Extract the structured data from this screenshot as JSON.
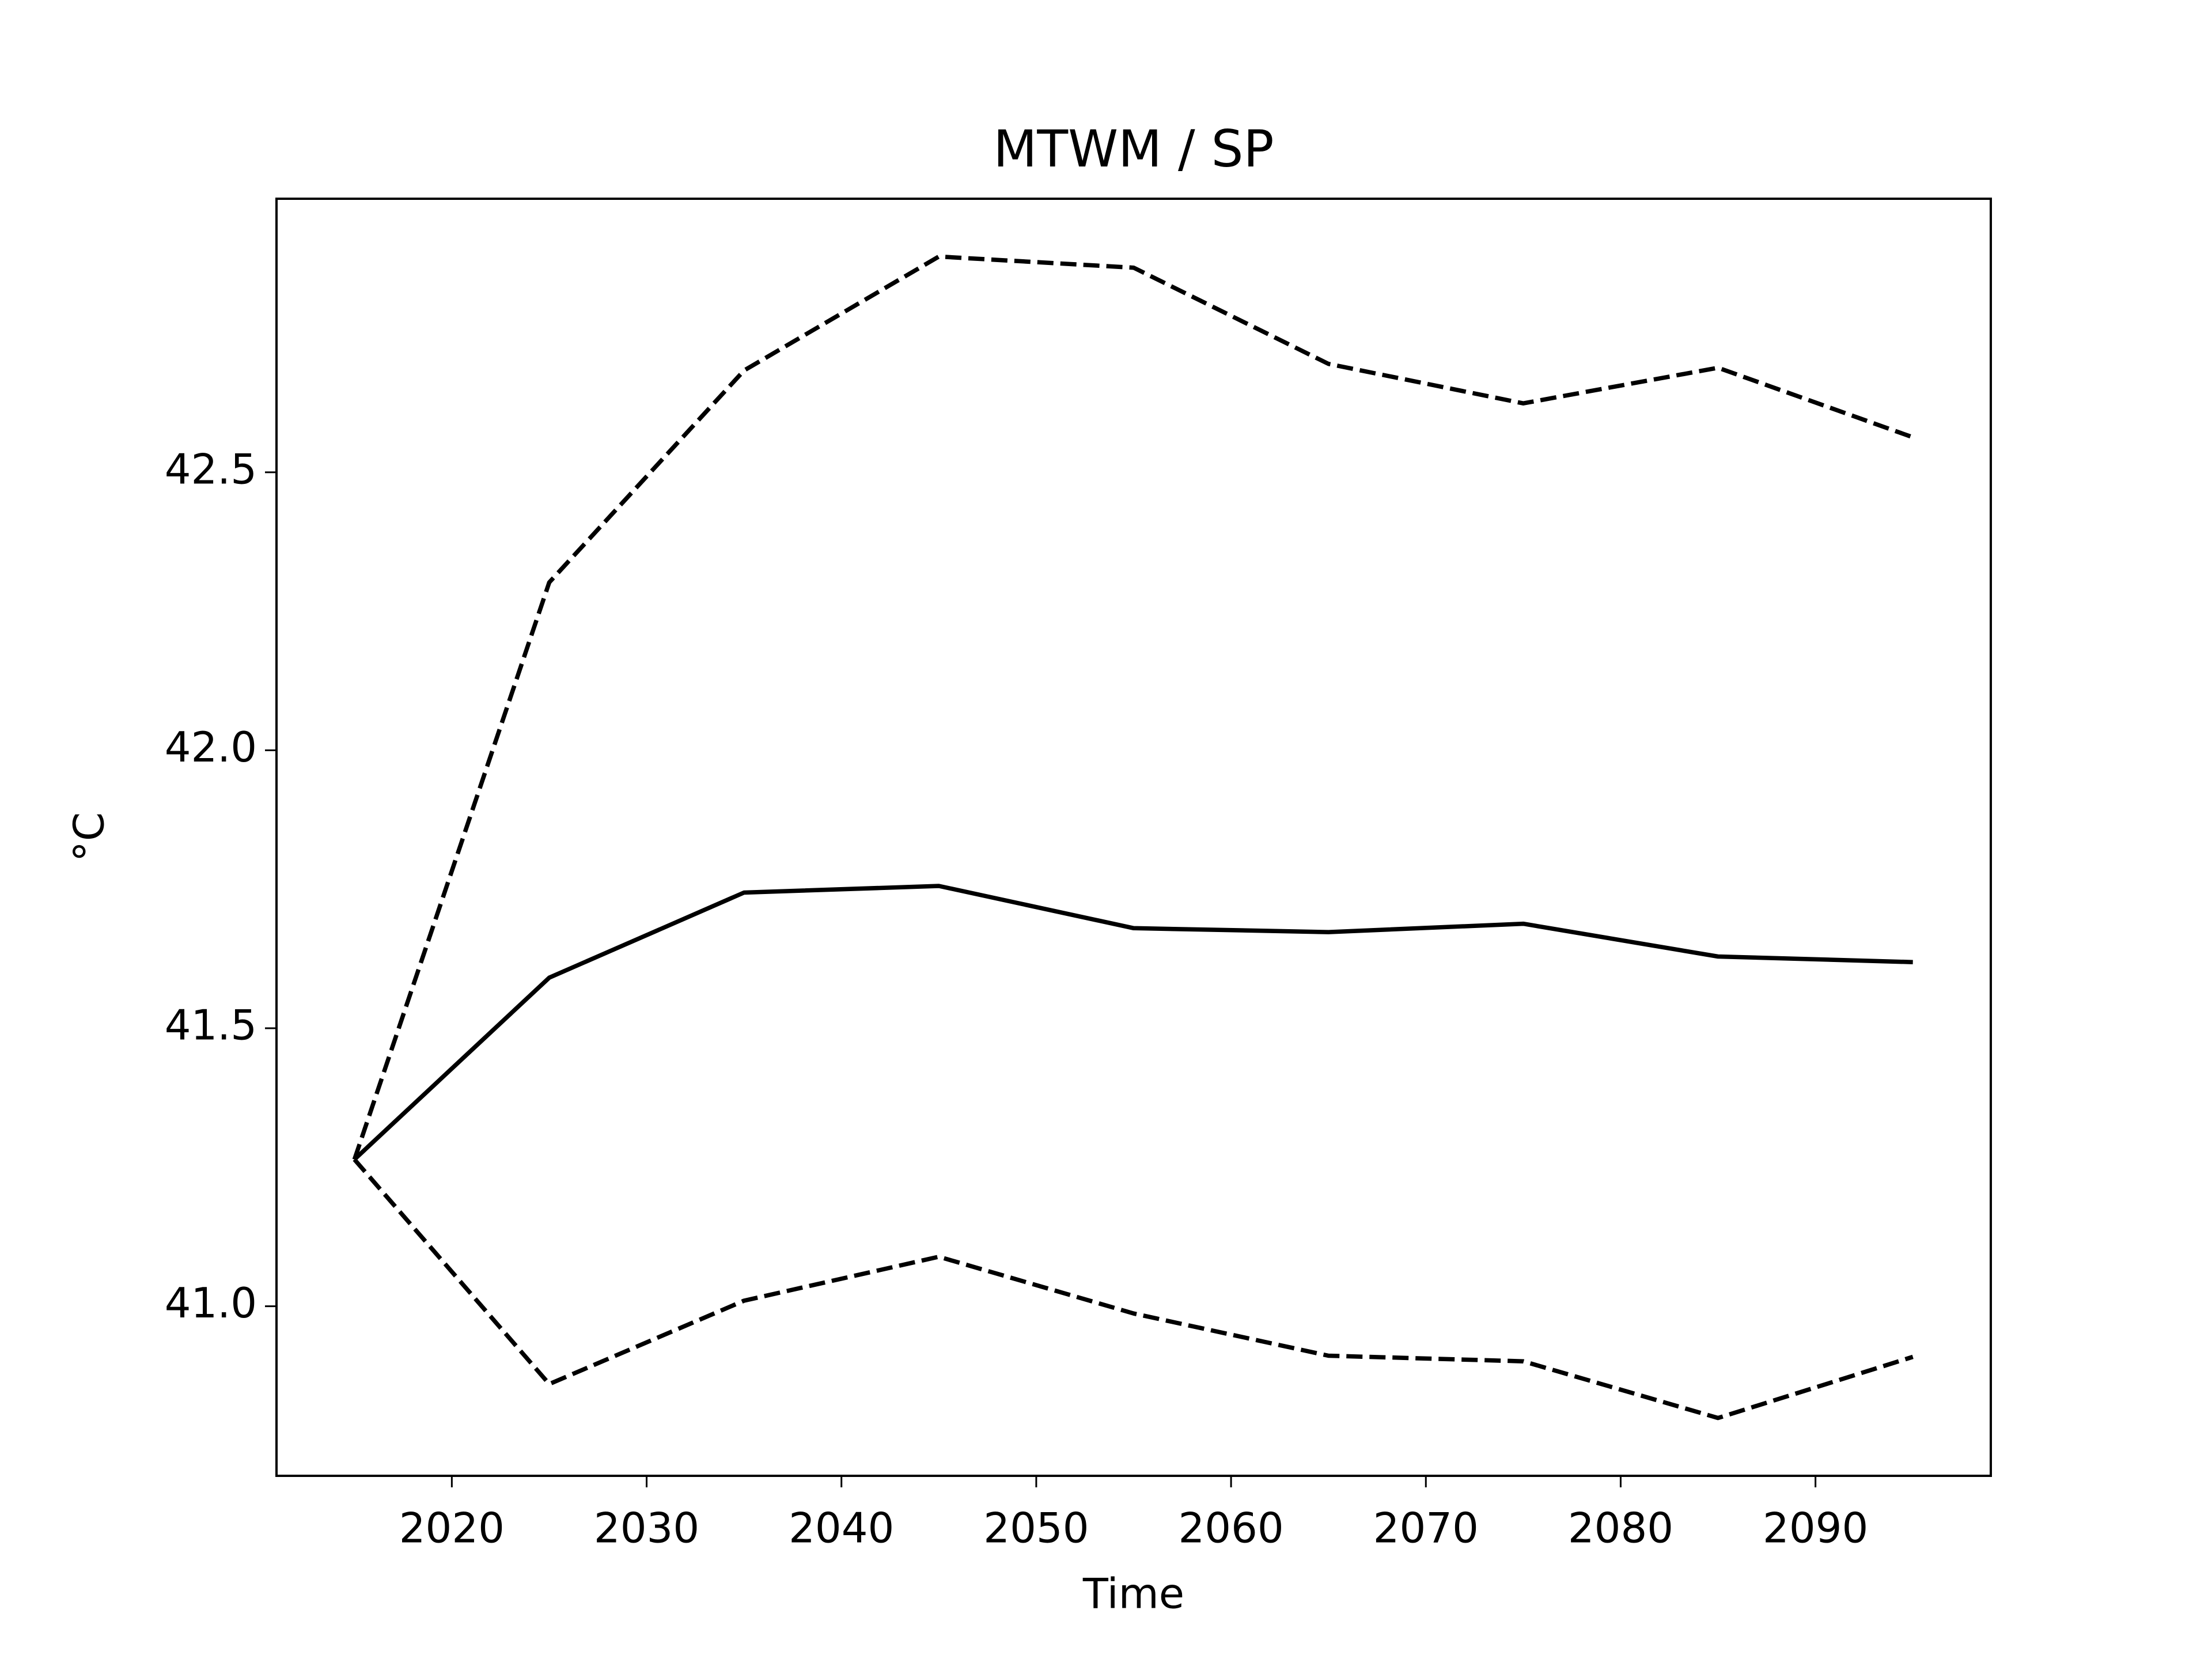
{
  "chart_data": {
    "type": "line",
    "title": "MTWM / SP",
    "xlabel": "Time",
    "ylabel": "°C",
    "x": [
      2015,
      2025,
      2035,
      2045,
      2055,
      2065,
      2075,
      2085,
      2095
    ],
    "series": [
      {
        "color": "#000000",
        "linestyle": "solid",
        "values": [
          41.264,
          41.591,
          41.744,
          41.756,
          41.68,
          41.673,
          41.688,
          41.629,
          41.619
        ]
      },
      {
        "color": "#000000",
        "linestyle": "dashed",
        "values": [
          41.264,
          42.302,
          42.683,
          42.888,
          42.868,
          42.695,
          42.624,
          42.688,
          42.563
        ]
      },
      {
        "color": "#000000",
        "linestyle": "dashed",
        "values": [
          41.264,
          40.86,
          41.01,
          41.089,
          40.987,
          40.911,
          40.901,
          40.799,
          40.909
        ]
      }
    ],
    "xlim": [
      2011,
      2099
    ],
    "ylim": [
      40.695,
      42.992
    ],
    "xticks": [
      2020,
      2030,
      2040,
      2050,
      2060,
      2070,
      2080,
      2090
    ],
    "yticks": [
      {
        "value": 41,
        "label": "41.0"
      },
      41.5,
      {
        "value": 42,
        "label": "42.0"
      },
      42.5
    ],
    "grid": false
  }
}
